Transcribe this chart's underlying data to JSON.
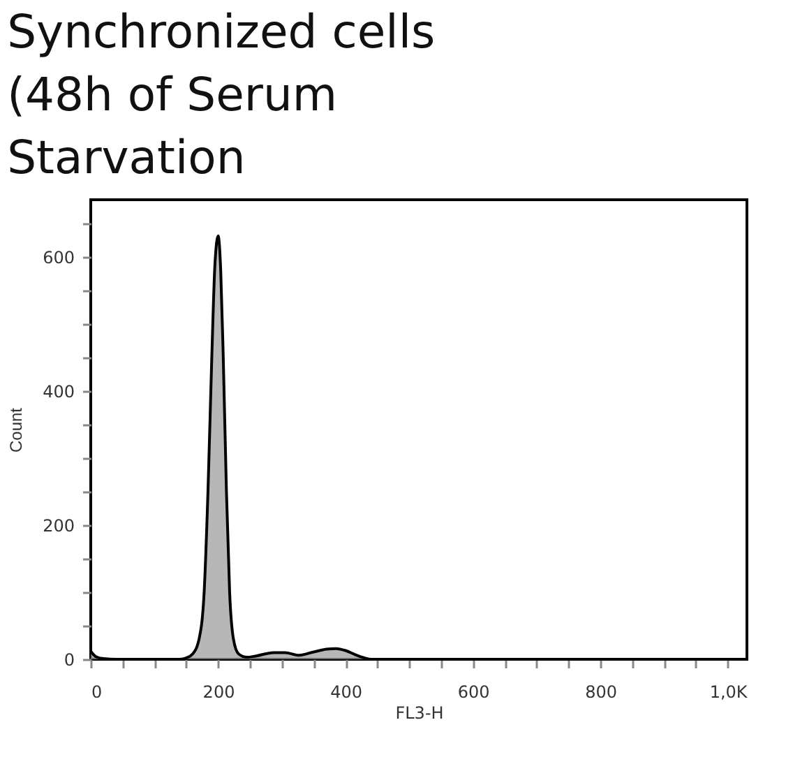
{
  "chart_data": {
    "type": "area",
    "title": "Synchronized cells (48h of Serum Starvation",
    "xlabel": "FL3-H",
    "ylabel": "Count",
    "x": [
      0,
      8,
      20,
      40,
      140,
      150,
      160,
      170,
      178,
      184,
      190,
      195,
      200,
      204,
      208,
      213,
      218,
      224,
      232,
      245,
      260,
      287,
      305,
      327,
      350,
      370,
      385,
      400,
      415,
      430,
      440,
      1000,
      1030
    ],
    "series": [
      {
        "color": "#999999",
        "values": [
          12,
          4,
          1,
          0,
          0,
          2,
          8,
          30,
          100,
          250,
          450,
          590,
          631,
          580,
          450,
          250,
          100,
          30,
          8,
          3,
          5,
          10,
          10,
          6,
          11,
          15,
          16,
          13,
          7,
          2,
          0,
          0,
          0
        ]
      }
    ],
    "xlim": [
      0,
      1030
    ],
    "ylim": [
      0,
      685
    ],
    "xticks": [
      0,
      {
        "value": 50,
        "label": null
      },
      {
        "value": 100,
        "label": null
      },
      {
        "value": 150,
        "label": null
      },
      200,
      {
        "value": 250,
        "label": null
      },
      {
        "value": 300,
        "label": null
      },
      {
        "value": 350,
        "label": null
      },
      400,
      {
        "value": 450,
        "label": null
      },
      {
        "value": 500,
        "label": null
      },
      {
        "value": 550,
        "label": null
      },
      600,
      {
        "value": 650,
        "label": null
      },
      {
        "value": 700,
        "label": null
      },
      {
        "value": 750,
        "label": null
      },
      800,
      {
        "value": 850,
        "label": null
      },
      {
        "value": 900,
        "label": null
      },
      {
        "value": 950,
        "label": null
      },
      {
        "value": 1000,
        "label": "1,0K"
      }
    ],
    "yticks": [
      0,
      {
        "value": 50,
        "label": null
      },
      {
        "value": 100,
        "label": null
      },
      {
        "value": 150,
        "label": null
      },
      200,
      {
        "value": 250,
        "label": null
      },
      {
        "value": 300,
        "label": null
      },
      {
        "value": 350,
        "label": null
      },
      400,
      {
        "value": 450,
        "label": null
      },
      {
        "value": 500,
        "label": null
      },
      {
        "value": 550,
        "label": null
      },
      600,
      {
        "value": 650,
        "label": null
      }
    ],
    "grid": false
  }
}
